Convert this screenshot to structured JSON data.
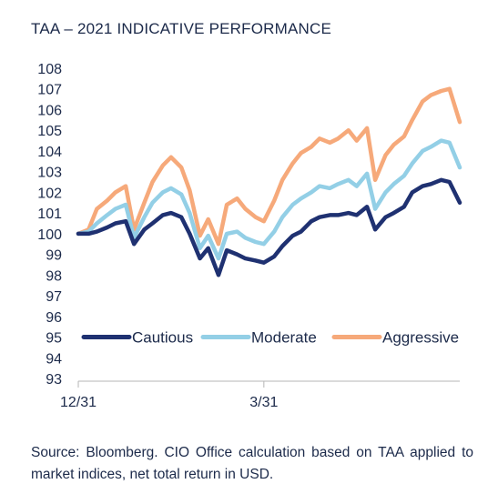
{
  "title": "TAA – 2021 INDICATIVE PERFORMANCE",
  "source": "Source: Bloomberg. CIO Office calculation based on TAA applied to market indices, net total return in USD.",
  "chart_data": {
    "type": "line",
    "title": "TAA – 2021 INDICATIVE PERFORMANCE",
    "xlabel": "",
    "ylabel": "",
    "ylim": [
      93,
      108
    ],
    "y_ticks": [
      93,
      94,
      95,
      96,
      97,
      98,
      99,
      100,
      101,
      102,
      103,
      104,
      105,
      106,
      107,
      108
    ],
    "x_tick_labels": [
      "12/31",
      "3/31"
    ],
    "x_ticks_day": [
      0,
      90
    ],
    "x_range_day": [
      0,
      185
    ],
    "grid": false,
    "legend": {
      "placement": "inside-bottom",
      "entries": [
        "Cautious",
        "Moderate",
        "Aggressive"
      ]
    },
    "colors": {
      "Cautious": "#1f3171",
      "Moderate": "#93cfe6",
      "Aggressive": "#f6a97a"
    },
    "series": [
      {
        "name": "Cautious",
        "x": [
          0,
          5,
          9,
          14,
          18,
          23,
          27,
          32,
          36,
          41,
          45,
          50,
          54,
          59,
          63,
          68,
          72,
          77,
          81,
          86,
          90,
          95,
          99,
          104,
          108,
          113,
          117,
          122,
          126,
          131,
          135,
          140,
          144,
          149,
          153,
          158,
          162,
          167,
          171,
          176,
          180,
          185
        ],
        "y": [
          100.0,
          100.0,
          100.1,
          100.3,
          100.5,
          100.6,
          99.5,
          100.2,
          100.5,
          100.9,
          101.0,
          100.8,
          100.0,
          98.8,
          99.3,
          98.0,
          99.2,
          99.0,
          98.8,
          98.7,
          98.6,
          98.9,
          99.4,
          99.9,
          100.1,
          100.6,
          100.8,
          100.9,
          100.9,
          101.0,
          100.9,
          101.3,
          100.2,
          100.8,
          101.0,
          101.3,
          102.0,
          102.3,
          102.4,
          102.6,
          102.5,
          101.5
        ]
      },
      {
        "name": "Moderate",
        "x": [
          0,
          5,
          9,
          14,
          18,
          23,
          27,
          32,
          36,
          41,
          45,
          50,
          54,
          59,
          63,
          68,
          72,
          77,
          81,
          86,
          90,
          95,
          99,
          104,
          108,
          113,
          117,
          122,
          126,
          131,
          135,
          140,
          144,
          149,
          153,
          158,
          162,
          167,
          171,
          176,
          180,
          185
        ],
        "y": [
          100.0,
          100.1,
          100.5,
          100.9,
          101.2,
          101.4,
          99.8,
          100.8,
          101.5,
          102.0,
          102.2,
          101.9,
          101.0,
          99.3,
          99.9,
          98.8,
          100.0,
          100.1,
          99.8,
          99.6,
          99.5,
          100.1,
          100.8,
          101.4,
          101.7,
          102.0,
          102.3,
          102.2,
          102.4,
          102.6,
          102.3,
          102.9,
          101.2,
          102.0,
          102.4,
          102.8,
          103.4,
          104.0,
          104.2,
          104.5,
          104.4,
          103.2
        ]
      },
      {
        "name": "Aggressive",
        "x": [
          0,
          5,
          9,
          14,
          18,
          23,
          27,
          32,
          36,
          41,
          45,
          50,
          54,
          59,
          63,
          68,
          72,
          77,
          81,
          86,
          90,
          95,
          99,
          104,
          108,
          113,
          117,
          122,
          126,
          131,
          135,
          140,
          144,
          149,
          153,
          158,
          162,
          167,
          171,
          176,
          180,
          185
        ],
        "y": [
          100.0,
          100.2,
          101.2,
          101.6,
          102.0,
          102.3,
          100.2,
          101.5,
          102.5,
          103.3,
          103.7,
          103.2,
          102.1,
          99.9,
          100.7,
          99.5,
          101.4,
          101.7,
          101.2,
          100.8,
          100.6,
          101.6,
          102.6,
          103.4,
          103.9,
          104.2,
          104.6,
          104.4,
          104.6,
          105.0,
          104.5,
          105.1,
          102.6,
          103.8,
          104.3,
          104.7,
          105.5,
          106.4,
          106.7,
          106.9,
          107.0,
          105.4
        ]
      }
    ]
  }
}
